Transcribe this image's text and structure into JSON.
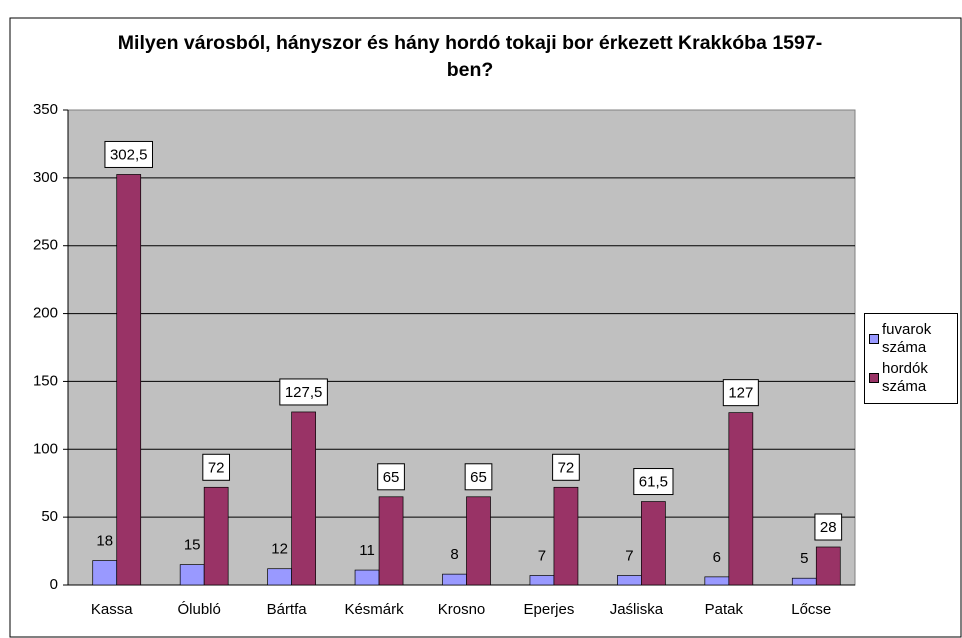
{
  "chart_data": {
    "type": "bar",
    "title": "Milyen városból, hányszor és hány hordó tokaji bor érkezett Krakkóba 1597-ben?",
    "categories": [
      "Kassa",
      "Ólubló",
      "Bártfa",
      "Késmárk",
      "Krosno",
      "Eperjes",
      "Jaśliska",
      "Patak",
      "Lőcse"
    ],
    "series": [
      {
        "name": "fuvarok száma",
        "color": "#9999ff",
        "values": [
          18,
          15,
          12,
          11,
          8,
          7,
          7,
          6,
          5
        ]
      },
      {
        "name": "hordók száma",
        "color": "#993366",
        "values": [
          302.5,
          72,
          127.5,
          65,
          65,
          72,
          61.5,
          127,
          28
        ],
        "value_labels": [
          "302,5",
          "72",
          "127,5",
          "65",
          "65",
          "72",
          "61,5",
          "127",
          "28"
        ]
      }
    ],
    "ylim": [
      0,
      350
    ],
    "yticks": [
      0,
      50,
      100,
      150,
      200,
      250,
      300,
      350
    ],
    "grid": true,
    "legend": "right"
  }
}
